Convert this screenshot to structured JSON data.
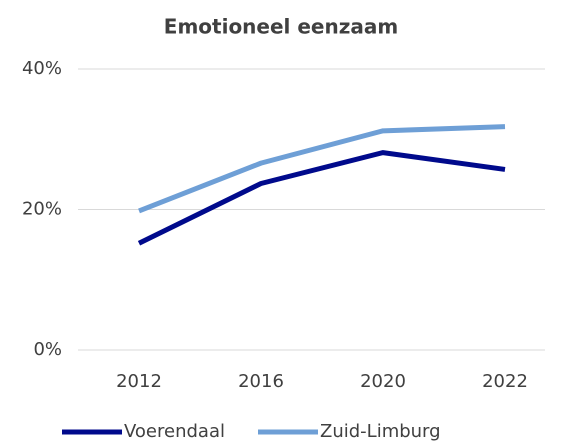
{
  "chart_data": {
    "type": "line",
    "title": "Emotioneel eenzaam",
    "categories": [
      "2012",
      "2016",
      "2020",
      "2022"
    ],
    "series": [
      {
        "name": "Voerendaal",
        "color": "#000a8c",
        "values": [
          15.2,
          23.7,
          28.1,
          25.7
        ]
      },
      {
        "name": "Zuid-Limburg",
        "color": "#6e9fd6",
        "values": [
          19.8,
          26.6,
          31.2,
          31.8
        ]
      }
    ],
    "ylim": [
      0,
      40
    ],
    "yticks": [
      {
        "value": 0,
        "label": "0%"
      },
      {
        "value": 20,
        "label": "20%"
      },
      {
        "value": 40,
        "label": "40%"
      }
    ],
    "grid": true,
    "legend": "bottom"
  }
}
